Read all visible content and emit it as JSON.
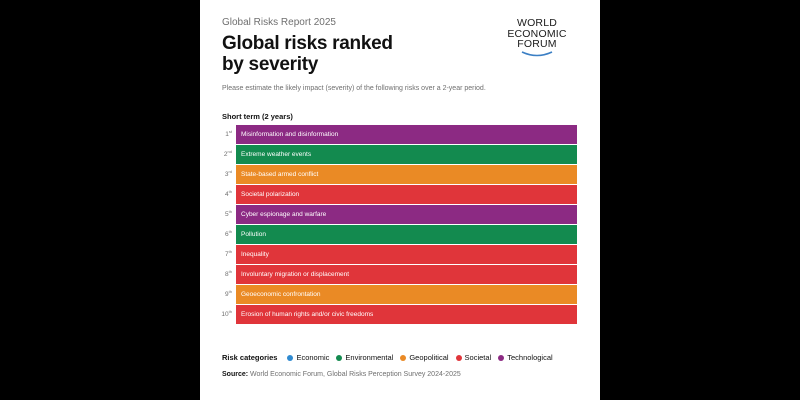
{
  "header": {
    "report_label": "Global Risks Report 2025",
    "title_line1": "Global risks ranked",
    "title_line2": "by severity"
  },
  "logo": {
    "line1": "WORLD",
    "line2": "ECONOMIC",
    "line3": "FORUM"
  },
  "question": "Please estimate the likely impact (severity) of the following risks over a 2-year period.",
  "section_label": "Short term (2 years)",
  "colors": {
    "economic": "#2f8ad0",
    "environmental": "#138a4f",
    "geopolitical": "#ea8a25",
    "societal": "#e0353a",
    "technological": "#8c2a83"
  },
  "risks": [
    {
      "rank": "1",
      "suffix": "st",
      "label": "Misinformation and disinformation",
      "category": "technological"
    },
    {
      "rank": "2",
      "suffix": "nd",
      "label": "Extreme weather events",
      "category": "environmental"
    },
    {
      "rank": "3",
      "suffix": "rd",
      "label": "State-based armed conflict",
      "category": "geopolitical"
    },
    {
      "rank": "4",
      "suffix": "th",
      "label": "Societal polarization",
      "category": "societal"
    },
    {
      "rank": "5",
      "suffix": "th",
      "label": "Cyber espionage and warfare",
      "category": "technological"
    },
    {
      "rank": "6",
      "suffix": "th",
      "label": "Pollution",
      "category": "environmental"
    },
    {
      "rank": "7",
      "suffix": "th",
      "label": "Inequality",
      "category": "societal"
    },
    {
      "rank": "8",
      "suffix": "th",
      "label": "Involuntary migration or displacement",
      "category": "societal"
    },
    {
      "rank": "9",
      "suffix": "th",
      "label": "Geoeconomic confrontation",
      "category": "geopolitical"
    },
    {
      "rank": "10",
      "suffix": "th",
      "label": "Erosion of human rights and/or civic freedoms",
      "category": "societal"
    }
  ],
  "legend": {
    "title": "Risk categories",
    "items": [
      {
        "label": "Economic",
        "category": "economic"
      },
      {
        "label": "Environmental",
        "category": "environmental"
      },
      {
        "label": "Geopolitical",
        "category": "geopolitical"
      },
      {
        "label": "Societal",
        "category": "societal"
      },
      {
        "label": "Technological",
        "category": "technological"
      }
    ]
  },
  "source": {
    "label": "Source:",
    "text": "World Economic Forum, Global Risks Perception Survey 2024-2025"
  }
}
